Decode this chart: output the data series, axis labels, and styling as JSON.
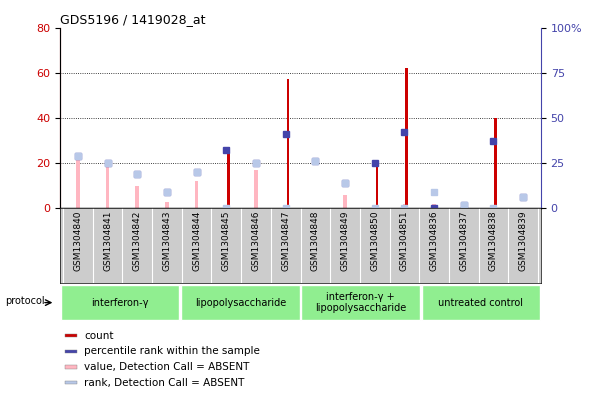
{
  "title": "GDS5196 / 1419028_at",
  "samples": [
    "GSM1304840",
    "GSM1304841",
    "GSM1304842",
    "GSM1304843",
    "GSM1304844",
    "GSM1304845",
    "GSM1304846",
    "GSM1304847",
    "GSM1304848",
    "GSM1304849",
    "GSM1304850",
    "GSM1304851",
    "GSM1304836",
    "GSM1304837",
    "GSM1304838",
    "GSM1304839"
  ],
  "count_values": [
    0,
    0,
    0,
    0,
    0,
    27,
    0,
    57,
    0,
    0,
    19,
    62,
    0,
    0,
    40,
    0
  ],
  "percentile_values": [
    29,
    25,
    19,
    9,
    20,
    32,
    25,
    41,
    26,
    14,
    25,
    42,
    0,
    2,
    37,
    6
  ],
  "absent_value_values": [
    23,
    20,
    10,
    3,
    12,
    0,
    17,
    0,
    0,
    6,
    0,
    2,
    2,
    1,
    0,
    0
  ],
  "absent_rank_values": [
    29,
    25,
    19,
    9,
    20,
    0,
    25,
    0,
    26,
    14,
    0,
    0,
    9,
    2,
    0,
    6
  ],
  "proto_boundaries": [
    [
      0,
      4,
      "interferon-γ"
    ],
    [
      4,
      8,
      "lipopolysaccharide"
    ],
    [
      8,
      12,
      "interferon-γ +\nlipopolysaccharide"
    ],
    [
      12,
      16,
      "untreated control"
    ]
  ],
  "ylim_left": [
    0,
    80
  ],
  "ylim_right": [
    0,
    100
  ],
  "yticks_left": [
    0,
    20,
    40,
    60,
    80
  ],
  "yticks_right": [
    0,
    25,
    50,
    75,
    100
  ],
  "count_color": "#CC0000",
  "percentile_color": "#4444AA",
  "absent_value_color": "#FFB6C1",
  "absent_rank_color": "#B8C8E8",
  "bg_color": "#CCCCCC",
  "proto_color": "#90EE90",
  "legend_items": [
    {
      "label": "count",
      "color": "#CC0000"
    },
    {
      "label": "percentile rank within the sample",
      "color": "#4444AA"
    },
    {
      "label": "value, Detection Call = ABSENT",
      "color": "#FFB6C1"
    },
    {
      "label": "rank, Detection Call = ABSENT",
      "color": "#B8C8E8"
    }
  ]
}
